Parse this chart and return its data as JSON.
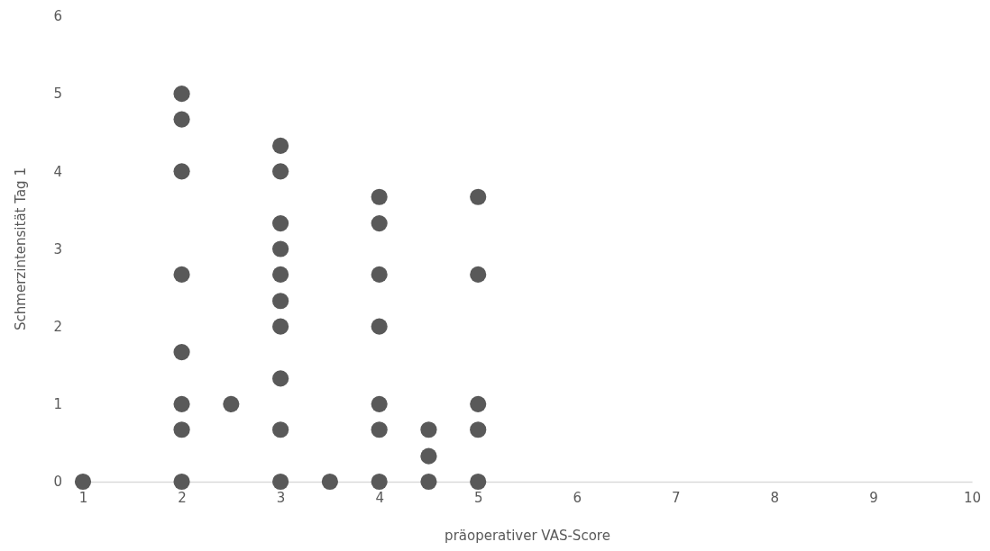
{
  "chart_data": {
    "type": "scatter",
    "xlabel": "präoperativer VAS-Score",
    "ylabel": "Schmerzintensität Tag 1",
    "x": [
      1,
      2,
      2,
      2,
      2,
      2,
      2,
      2,
      2,
      2.5,
      3,
      3,
      3,
      3,
      3,
      3,
      3,
      3,
      3,
      3,
      3.5,
      4,
      4,
      4,
      4,
      4,
      4,
      4,
      4.5,
      4.5,
      4.5,
      5,
      5,
      5,
      5,
      5
    ],
    "series": [
      {
        "color": "#595959",
        "values": [
          0,
          5,
          4.67,
          4,
          2.67,
          1.67,
          1,
          0.67,
          0,
          1,
          4.33,
          4,
          3.33,
          3,
          2.67,
          2.33,
          2,
          1.33,
          0.67,
          0,
          0,
          3.67,
          3.33,
          2.67,
          2,
          1,
          0.67,
          0,
          0.67,
          0.33,
          0,
          3.67,
          2.67,
          1,
          0.67,
          0
        ]
      }
    ],
    "xlim": [
      1,
      10
    ],
    "xticks": [
      1,
      2,
      3,
      4,
      5,
      6,
      7,
      8,
      9,
      10
    ],
    "ylim": [
      0,
      6
    ],
    "yticks": [
      0,
      1,
      2,
      3,
      4,
      5,
      6
    ],
    "grid": false,
    "marker": "circle"
  }
}
